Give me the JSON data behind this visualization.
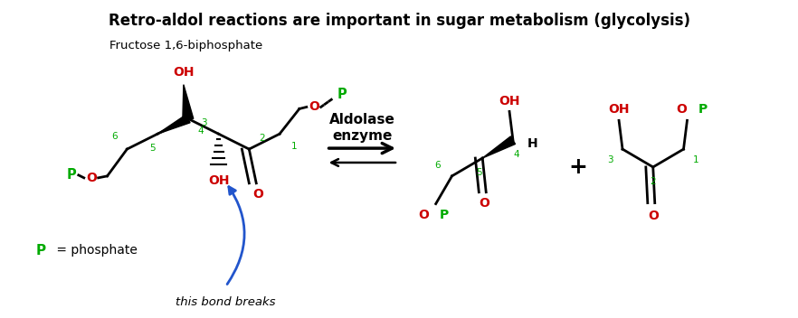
{
  "title": "Retro-aldol reactions are important in sugar metabolism (glycolysis)",
  "subtitle": "Fructose 1,6-biphosphate",
  "arrow_label_line1": "Aldolase",
  "arrow_label_line2": "enzyme",
  "p_label": "P = phosphate",
  "bond_breaks_label": "this bond breaks",
  "colors": {
    "black": "#000000",
    "red": "#cc0000",
    "green": "#00aa00",
    "blue": "#2255cc",
    "white": "#ffffff"
  },
  "bg_color": "#ffffff"
}
